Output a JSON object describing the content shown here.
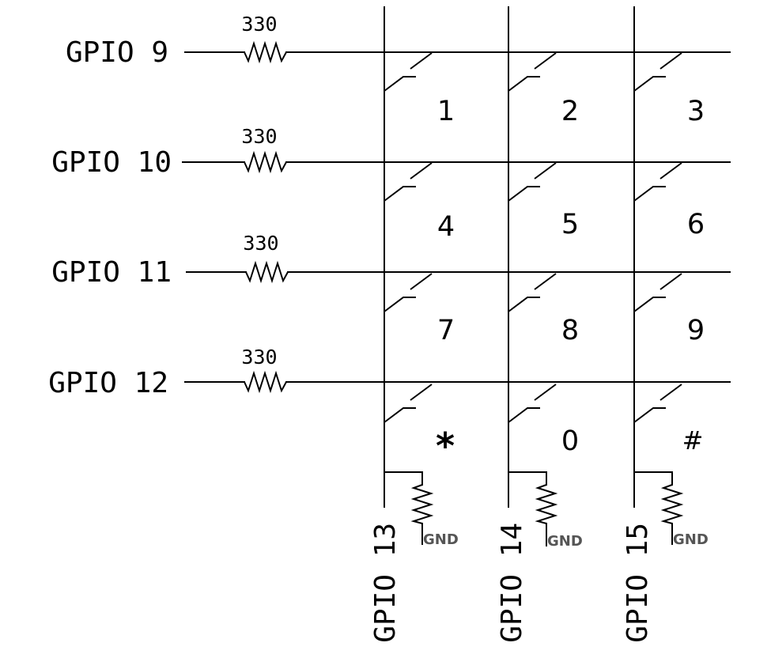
{
  "rows": [
    {
      "label": "GPIO 9",
      "resistor": "330"
    },
    {
      "label": "GPIO 10",
      "resistor": "330"
    },
    {
      "label": "GPIO 11",
      "resistor": "330"
    },
    {
      "label": "GPIO 12",
      "resistor": "330"
    }
  ],
  "columns": [
    {
      "label": "GPIO 13",
      "ground": "GND"
    },
    {
      "label": "GPIO 14",
      "ground": "GND"
    },
    {
      "label": "GPIO 15",
      "ground": "GND"
    }
  ],
  "keys": [
    [
      "1",
      "2",
      "3"
    ],
    [
      "4",
      "5",
      "6"
    ],
    [
      "7",
      "8",
      "9"
    ],
    [
      "*",
      "0",
      "#"
    ]
  ]
}
